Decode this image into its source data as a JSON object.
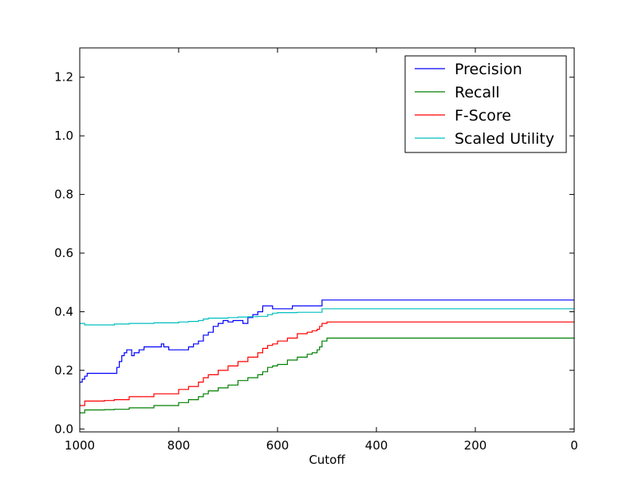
{
  "chart_data": {
    "type": "line",
    "title": "",
    "xlabel": "Cutoff",
    "ylabel": "",
    "xlim": [
      1000,
      0
    ],
    "ylim": [
      -0.01,
      1.3
    ],
    "x_ticks": [
      1000,
      800,
      600,
      400,
      200,
      0
    ],
    "x_tick_labels": [
      "1000",
      "800",
      "600",
      "400",
      "200",
      "0"
    ],
    "y_ticks": [
      0.0,
      0.2,
      0.4,
      0.6,
      0.8,
      1.0,
      1.2
    ],
    "y_tick_labels": [
      "0.0",
      "0.2",
      "0.4",
      "0.6",
      "0.8",
      "1.0",
      "1.2"
    ],
    "grid": false,
    "legend_position": "top-right",
    "series": [
      {
        "name": "Precision",
        "color": "#0000ff",
        "x": [
          1000,
          995,
          990,
          985,
          980,
          975,
          930,
          925,
          920,
          915,
          910,
          905,
          900,
          895,
          890,
          880,
          870,
          860,
          850,
          840,
          835,
          830,
          820,
          810,
          800,
          790,
          780,
          770,
          760,
          750,
          740,
          730,
          720,
          710,
          700,
          690,
          680,
          670,
          665,
          660,
          655,
          650,
          640,
          630,
          620,
          610,
          600,
          590,
          580,
          570,
          560,
          550,
          540,
          530,
          520,
          515,
          510,
          500,
          400,
          300,
          200,
          100,
          0
        ],
        "y": [
          0.16,
          0.17,
          0.18,
          0.19,
          0.19,
          0.19,
          0.19,
          0.21,
          0.23,
          0.25,
          0.26,
          0.27,
          0.27,
          0.25,
          0.26,
          0.27,
          0.28,
          0.28,
          0.28,
          0.28,
          0.29,
          0.28,
          0.27,
          0.27,
          0.27,
          0.27,
          0.28,
          0.29,
          0.3,
          0.32,
          0.33,
          0.35,
          0.36,
          0.37,
          0.365,
          0.37,
          0.37,
          0.36,
          0.36,
          0.38,
          0.38,
          0.39,
          0.4,
          0.42,
          0.42,
          0.41,
          0.41,
          0.41,
          0.41,
          0.42,
          0.42,
          0.42,
          0.42,
          0.42,
          0.42,
          0.42,
          0.44,
          0.44,
          0.44,
          0.44,
          0.44,
          0.44,
          0.44
        ]
      },
      {
        "name": "Recall",
        "color": "#008000",
        "x": [
          1000,
          990,
          980,
          950,
          930,
          900,
          850,
          800,
          780,
          760,
          750,
          740,
          720,
          700,
          680,
          660,
          640,
          630,
          620,
          610,
          600,
          580,
          560,
          540,
          530,
          520,
          515,
          510,
          500,
          400,
          300,
          200,
          100,
          0
        ],
        "y": [
          0.055,
          0.065,
          0.065,
          0.066,
          0.067,
          0.072,
          0.08,
          0.09,
          0.1,
          0.11,
          0.12,
          0.13,
          0.14,
          0.15,
          0.165,
          0.175,
          0.185,
          0.195,
          0.21,
          0.215,
          0.22,
          0.235,
          0.245,
          0.255,
          0.26,
          0.27,
          0.28,
          0.3,
          0.31,
          0.31,
          0.31,
          0.31,
          0.31,
          0.31
        ]
      },
      {
        "name": "F-Score",
        "color": "#ff0000",
        "x": [
          1000,
          990,
          980,
          950,
          930,
          900,
          850,
          800,
          780,
          760,
          750,
          740,
          720,
          700,
          680,
          660,
          640,
          630,
          620,
          610,
          600,
          580,
          560,
          540,
          530,
          520,
          515,
          510,
          500,
          400,
          300,
          200,
          100,
          0
        ],
        "y": [
          0.08,
          0.095,
          0.095,
          0.097,
          0.1,
          0.11,
          0.12,
          0.135,
          0.145,
          0.16,
          0.175,
          0.185,
          0.2,
          0.215,
          0.23,
          0.245,
          0.26,
          0.275,
          0.285,
          0.29,
          0.3,
          0.31,
          0.325,
          0.33,
          0.335,
          0.34,
          0.35,
          0.36,
          0.365,
          0.365,
          0.365,
          0.365,
          0.365,
          0.365
        ]
      },
      {
        "name": "Scaled Utility",
        "color": "#00bfbf",
        "x": [
          1000,
          990,
          980,
          950,
          930,
          900,
          850,
          800,
          780,
          760,
          750,
          740,
          720,
          700,
          680,
          660,
          640,
          620,
          610,
          600,
          580,
          560,
          540,
          520,
          510,
          500,
          400,
          300,
          200,
          100,
          0
        ],
        "y": [
          0.36,
          0.355,
          0.355,
          0.355,
          0.358,
          0.36,
          0.362,
          0.365,
          0.367,
          0.37,
          0.375,
          0.378,
          0.378,
          0.38,
          0.382,
          0.383,
          0.384,
          0.39,
          0.395,
          0.397,
          0.397,
          0.398,
          0.398,
          0.398,
          0.41,
          0.41,
          0.41,
          0.41,
          0.41,
          0.41,
          0.41
        ]
      }
    ]
  }
}
